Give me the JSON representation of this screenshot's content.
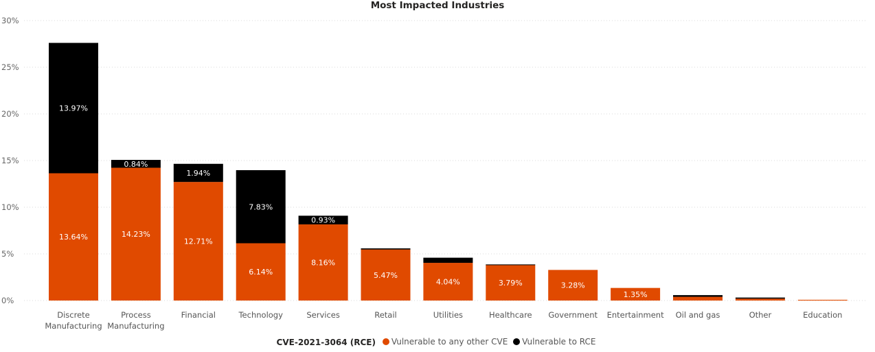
{
  "chart_data": {
    "type": "bar",
    "stacked": true,
    "title": "Most Impacted Industries",
    "categories": [
      [
        "Discrete",
        "Manufacturing"
      ],
      [
        "Process",
        "Manufacturing"
      ],
      [
        "Financial"
      ],
      [
        "Technology"
      ],
      [
        "Services"
      ],
      [
        "Retail"
      ],
      [
        "Utilities"
      ],
      [
        "Healthcare"
      ],
      [
        "Government"
      ],
      [
        "Entertainment"
      ],
      [
        "Oil and gas"
      ],
      [
        "Other"
      ],
      [
        "Education"
      ]
    ],
    "series": [
      {
        "name": "Vulnerable to any other CVE",
        "color": "#E04A00",
        "values": [
          13.64,
          14.23,
          12.71,
          6.14,
          8.16,
          5.47,
          4.04,
          3.79,
          3.28,
          1.35,
          0.4,
          0.2,
          0.08
        ],
        "labels": [
          "13.64%",
          "14.23%",
          "12.71%",
          "6.14%",
          "8.16%",
          "5.47%",
          "4.04%",
          "3.79%",
          "3.28%",
          "1.35%",
          "",
          "",
          ""
        ]
      },
      {
        "name": "Vulnerable to RCE",
        "color": "#000000",
        "values": [
          13.97,
          0.84,
          1.94,
          7.83,
          0.93,
          0.12,
          0.55,
          0.08,
          0,
          0,
          0.18,
          0.12,
          0
        ],
        "labels": [
          "13.97%",
          "0.84%",
          "1.94%",
          "7.83%",
          "0.93%",
          "",
          "",
          "",
          "",
          "",
          "",
          "",
          ""
        ]
      }
    ],
    "y_ticks": [
      "0%",
      "5%",
      "10%",
      "15%",
      "20%",
      "25%",
      "30%"
    ],
    "ylim": [
      0,
      30
    ],
    "grid": true,
    "legend": {
      "title": "CVE-2021-3064 (RCE)",
      "position": "bottom-center"
    }
  }
}
